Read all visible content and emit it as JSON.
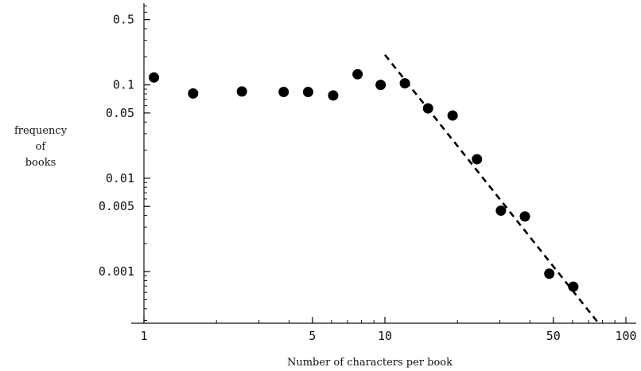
{
  "chart_data": {
    "type": "scatter",
    "xlabel": "Number of characters per book",
    "ylabel": [
      "frequency",
      "of",
      "books"
    ],
    "x_scale": "log",
    "y_scale": "log",
    "xlim": [
      1,
      100
    ],
    "ylim": [
      0.00028,
      0.75
    ],
    "x_ticks": [
      {
        "value": 1,
        "label": "1"
      },
      {
        "value": 5,
        "label": "5"
      },
      {
        "value": 10,
        "label": "10"
      },
      {
        "value": 50,
        "label": "50"
      },
      {
        "value": 100,
        "label": "100"
      }
    ],
    "y_ticks": [
      {
        "value": 0.5,
        "label": "0.5"
      },
      {
        "value": 0.1,
        "label": "0.1"
      },
      {
        "value": 0.05,
        "label": "0.05"
      },
      {
        "value": 0.01,
        "label": "0.01"
      },
      {
        "value": 0.005,
        "label": "0.005"
      },
      {
        "value": 0.001,
        "label": "0.001"
      }
    ],
    "points": [
      {
        "x": 1.1,
        "y": 0.12
      },
      {
        "x": 1.6,
        "y": 0.081
      },
      {
        "x": 2.55,
        "y": 0.085
      },
      {
        "x": 3.8,
        "y": 0.084
      },
      {
        "x": 4.8,
        "y": 0.084
      },
      {
        "x": 6.1,
        "y": 0.077
      },
      {
        "x": 7.7,
        "y": 0.13
      },
      {
        "x": 9.6,
        "y": 0.1
      },
      {
        "x": 12.1,
        "y": 0.104
      },
      {
        "x": 15.1,
        "y": 0.056
      },
      {
        "x": 19.1,
        "y": 0.047
      },
      {
        "x": 24.1,
        "y": 0.016
      },
      {
        "x": 30.3,
        "y": 0.0045
      },
      {
        "x": 38.1,
        "y": 0.0039
      },
      {
        "x": 48.1,
        "y": 0.00095
      },
      {
        "x": 60.5,
        "y": 0.00069
      }
    ],
    "fit_line": {
      "style": "dashed",
      "from": {
        "x": 10,
        "y": 0.21
      },
      "to": {
        "x": 77,
        "y": 0.00028
      }
    }
  }
}
